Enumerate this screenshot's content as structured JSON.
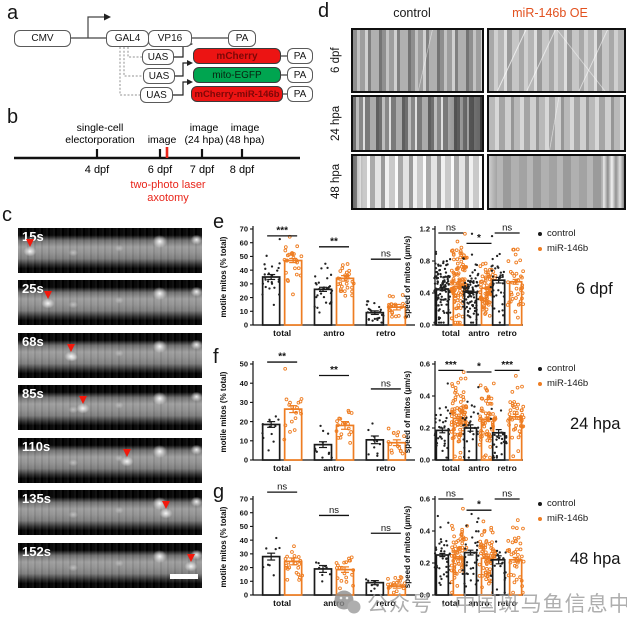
{
  "figure": {
    "watermark": {
      "text": "公众号 · 中国斑马鱼信息中心",
      "color": "#9b9b9b"
    }
  },
  "panel_a": {
    "label": "a",
    "boxes": {
      "cmv": "CMV",
      "gal4": "GAL4",
      "vp16": "VP16",
      "pa_top": "PA",
      "uas_1": "UAS",
      "uas_2": "UAS",
      "uas_3": "UAS",
      "reporter_1": "mCherry",
      "reporter_2": "mito-EGFP",
      "reporter_3": "mCherry-miR-146b",
      "pa_1": "PA",
      "pa_2": "PA",
      "pa_3": "PA"
    },
    "colors": {
      "mcherry_fill": "#ec1413",
      "egfp_fill": "#00a550"
    }
  },
  "panel_b": {
    "label": "b",
    "events": [
      {
        "line1": "single-cell",
        "line2": "electorporation"
      },
      {
        "line1": "image",
        "line2": ""
      },
      {
        "line1": "image",
        "line2": "(24 hpa)"
      },
      {
        "line1": "image",
        "line2": "(48 hpa)"
      }
    ],
    "timepoints": [
      "4 dpf",
      "6 dpf",
      "7 dpf",
      "8 dpf"
    ],
    "axotomy": {
      "line1": "two-photo laser",
      "line2": "axotomy",
      "color": "#e8251a"
    }
  },
  "panel_c": {
    "label": "c",
    "frames": [
      {
        "time": "15s",
        "arrow_pct": 6.5
      },
      {
        "time": "25s",
        "arrow_pct": 16.3
      },
      {
        "time": "68s",
        "arrow_pct": 28.8
      },
      {
        "time": "85s",
        "arrow_pct": 35.3
      },
      {
        "time": "110s",
        "arrow_pct": 59.2
      },
      {
        "time": "135s",
        "arrow_pct": 80.4
      },
      {
        "time": "152s",
        "arrow_pct": 94.0
      }
    ]
  },
  "panel_d": {
    "label": "d",
    "columns": [
      {
        "label": "control",
        "color": "#1a1a1a"
      },
      {
        "label": "miR-146b OE",
        "color": "#e2511f"
      }
    ],
    "rows": [
      "6 dpf",
      "24 hpa",
      "48 hpa"
    ]
  },
  "legend": {
    "entries": [
      {
        "label": "control",
        "color": "#1a1a1a"
      },
      {
        "label": "miR-146b",
        "color": "#ee7d22"
      }
    ]
  },
  "row_time_labels": [
    "6 dpf",
    "24 hpa",
    "48 hpa"
  ],
  "panel_chart_labels": {
    "e": "e",
    "f": "f",
    "g": "g"
  },
  "chart_data": [
    {
      "id": "e-left",
      "panel": "e",
      "side": "left",
      "type": "bar",
      "ylabel": "motile mitos (% total)",
      "ylim": [
        0,
        70
      ],
      "yticks": [
        0,
        10,
        20,
        30,
        40,
        50,
        60,
        70
      ],
      "categories": [
        "total",
        "antro",
        "retro"
      ],
      "series": [
        {
          "name": "control",
          "color": "#1a1a1a",
          "means": [
            35,
            26,
            9
          ],
          "sem": [
            1.8,
            1.5,
            1.3
          ],
          "n": [
            25,
            28,
            22
          ]
        },
        {
          "name": "miR-146b",
          "color": "#ee7d22",
          "means": [
            47,
            34,
            13
          ],
          "sem": [
            1.5,
            2.0,
            2.0
          ],
          "n": [
            25,
            28,
            22
          ]
        }
      ],
      "sig": [
        "***",
        "**",
        "ns"
      ],
      "sig_y": [
        65,
        57,
        48
      ],
      "spread": [
        10,
        8,
        5
      ]
    },
    {
      "id": "e-right",
      "panel": "e",
      "side": "right",
      "type": "bar",
      "ylabel": "speed of mitos (µm/s)",
      "ylim": [
        0,
        1.2
      ],
      "yticks": [
        0,
        0.4,
        0.8,
        1.2
      ],
      "categories": [
        "total",
        "antro",
        "retro"
      ],
      "series": [
        {
          "name": "control",
          "color": "#1a1a1a",
          "means": [
            0.45,
            0.41,
            0.56
          ],
          "sem": [
            0.02,
            0.015,
            0.035
          ],
          "n": [
            110,
            90,
            38
          ]
        },
        {
          "name": "miR-146b",
          "color": "#ee7d22",
          "means": [
            0.48,
            0.46,
            0.54
          ],
          "sem": [
            0.02,
            0.015,
            0.03
          ],
          "n": [
            120,
            100,
            40
          ]
        }
      ],
      "sig": [
        "ns",
        "*",
        "ns"
      ],
      "sig_y": [
        1.15,
        1.02,
        1.15
      ],
      "spread": [
        0.22,
        0.18,
        0.24
      ]
    },
    {
      "id": "f-left",
      "panel": "f",
      "side": "left",
      "type": "bar",
      "ylabel": "motile mitos (% total)",
      "ylim": [
        0,
        50
      ],
      "yticks": [
        0,
        10,
        20,
        30,
        40,
        50
      ],
      "categories": [
        "total",
        "antro",
        "retro"
      ],
      "series": [
        {
          "name": "control",
          "color": "#1a1a1a",
          "means": [
            18.5,
            8,
            10.5
          ],
          "sem": [
            1.5,
            1.5,
            2.0
          ],
          "n": [
            12,
            11,
            10
          ]
        },
        {
          "name": "miR-146b",
          "color": "#ee7d22",
          "means": [
            26.5,
            18,
            9
          ],
          "sem": [
            1.8,
            2.0,
            1.5
          ],
          "n": [
            18,
            18,
            15
          ]
        }
      ],
      "sig": [
        "**",
        "**",
        "ns"
      ],
      "sig_y": [
        51,
        44,
        37
      ],
      "spread": [
        6,
        5,
        5
      ]
    },
    {
      "id": "f-right",
      "panel": "f",
      "side": "right",
      "type": "bar",
      "ylabel": "speed of mitos (µm/s)",
      "ylim": [
        0,
        0.6
      ],
      "yticks": [
        0,
        0.2,
        0.4,
        0.6
      ],
      "categories": [
        "total",
        "antro",
        "retro"
      ],
      "series": [
        {
          "name": "control",
          "color": "#1a1a1a",
          "means": [
            0.185,
            0.2,
            0.17
          ],
          "sem": [
            0.015,
            0.02,
            0.02
          ],
          "n": [
            35,
            30,
            26
          ]
        },
        {
          "name": "miR-146b",
          "color": "#ee7d22",
          "means": [
            0.26,
            0.255,
            0.27
          ],
          "sem": [
            0.012,
            0.012,
            0.015
          ],
          "n": [
            90,
            70,
            45
          ]
        }
      ],
      "sig": [
        "***",
        "*",
        "***"
      ],
      "sig_y": [
        0.56,
        0.55,
        0.56
      ],
      "spread": [
        0.1,
        0.1,
        0.1
      ]
    },
    {
      "id": "g-left",
      "panel": "g",
      "side": "left",
      "type": "bar",
      "ylabel": "motile mitos (% total)",
      "ylim": [
        0,
        70
      ],
      "yticks": [
        0,
        10,
        20,
        30,
        40,
        50,
        60,
        70
      ],
      "categories": [
        "total",
        "antro",
        "retro"
      ],
      "series": [
        {
          "name": "control",
          "color": "#1a1a1a",
          "means": [
            28,
            19,
            9
          ],
          "sem": [
            2.5,
            2.5,
            1.5
          ],
          "n": [
            8,
            8,
            8
          ]
        },
        {
          "name": "miR-146b",
          "color": "#ee7d22",
          "means": [
            24.5,
            18.5,
            6.5
          ],
          "sem": [
            2.5,
            2.0,
            1.5
          ],
          "n": [
            22,
            20,
            20
          ]
        }
      ],
      "sig": [
        "ns",
        "ns",
        "ns"
      ],
      "sig_y": [
        75,
        58,
        45
      ],
      "spread": [
        8,
        7,
        4
      ]
    },
    {
      "id": "g-right",
      "panel": "g",
      "side": "right",
      "type": "bar",
      "ylabel": "speed of mitos (µm/s)",
      "ylim": [
        0,
        0.6
      ],
      "yticks": [
        0,
        0.2,
        0.4,
        0.6
      ],
      "categories": [
        "total",
        "antro",
        "retro"
      ],
      "series": [
        {
          "name": "control",
          "color": "#1a1a1a",
          "means": [
            0.25,
            0.265,
            0.22
          ],
          "sem": [
            0.01,
            0.015,
            0.025
          ],
          "n": [
            40,
            35,
            22
          ]
        },
        {
          "name": "miR-146b",
          "color": "#ee7d22",
          "means": [
            0.23,
            0.23,
            0.22
          ],
          "sem": [
            0.01,
            0.01,
            0.015
          ],
          "n": [
            85,
            75,
            40
          ]
        }
      ],
      "sig": [
        "ns",
        "*",
        "ns"
      ],
      "sig_y": [
        0.6,
        0.53,
        0.6
      ],
      "spread": [
        0.1,
        0.1,
        0.09
      ]
    }
  ]
}
